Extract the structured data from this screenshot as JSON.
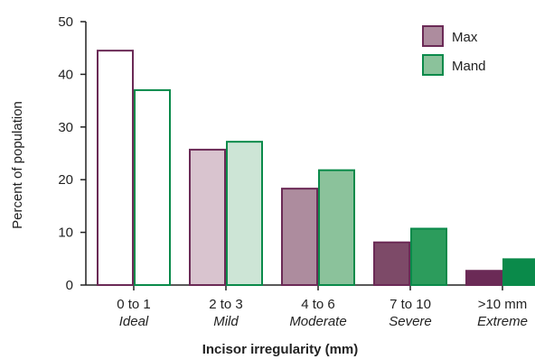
{
  "chart_data": {
    "type": "bar",
    "categories": [
      "0 to 1",
      "2 to 3",
      "4 to 6",
      "7 to 10",
      ">10 mm"
    ],
    "subcategories": [
      "Ideal",
      "Mild",
      "Moderate",
      "Severe",
      "Extreme"
    ],
    "series": [
      {
        "name": "Max",
        "values": [
          44.5,
          25.7,
          18.3,
          8.1,
          2.7
        ],
        "stroke": "#6b2a56",
        "fills": [
          "#ffffff",
          "#d9c4cf",
          "#ad8c9e",
          "#7d4a68",
          "#6b2a56"
        ],
        "legend_fill": "#ad8c9e"
      },
      {
        "name": "Mand",
        "values": [
          37.0,
          27.2,
          21.8,
          10.7,
          4.9
        ],
        "stroke": "#0a8a4a",
        "fills": [
          "#ffffff",
          "#cde5d6",
          "#8bc29b",
          "#2c9c5c",
          "#0a8a4a"
        ],
        "legend_fill": "#8bc29b"
      }
    ],
    "title": "",
    "xlabel": "Incisor irregularity (mm)",
    "ylabel": "Percent of population",
    "ylim": [
      0,
      50
    ],
    "yticks": [
      0,
      10,
      20,
      30,
      40,
      50
    ],
    "grid": false,
    "legend": "top-right"
  }
}
